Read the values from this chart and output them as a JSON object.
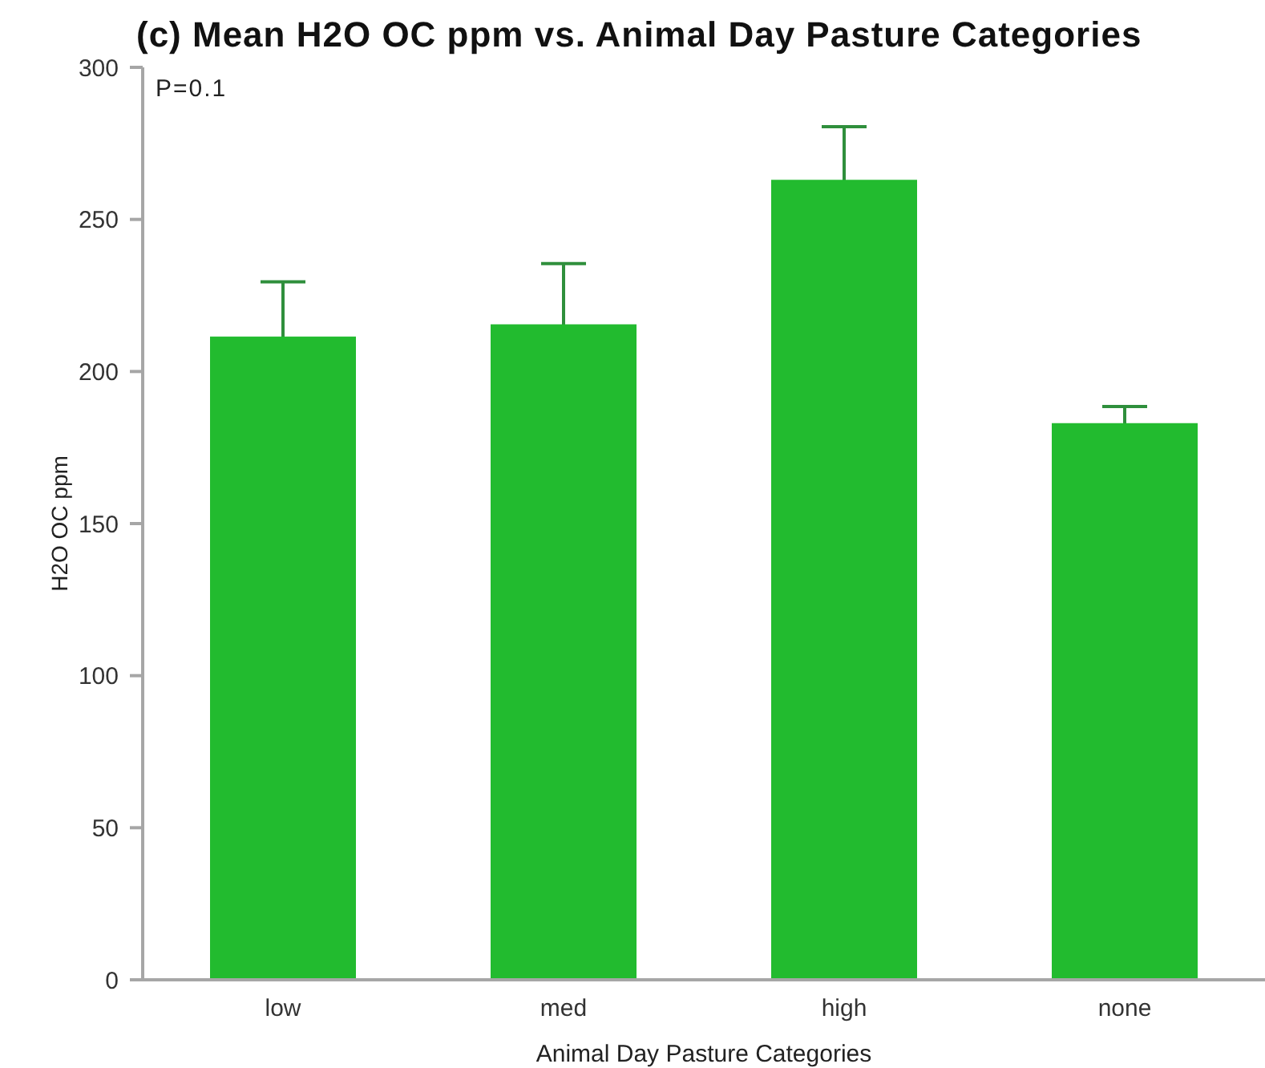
{
  "chart_data": {
    "type": "bar",
    "title": "(c) Mean H2O OC ppm vs. Animal Day Pasture Categories",
    "xlabel": "Animal Day Pasture Categories",
    "ylabel": "H2O OC ppm",
    "categories": [
      "low",
      "med",
      "high",
      "none"
    ],
    "values": [
      211.5,
      215.5,
      263,
      183
    ],
    "errors": [
      18,
      20,
      17.5,
      5.5
    ],
    "color": "#22bb2f",
    "ylim": [
      0,
      300
    ],
    "yticks": [
      0,
      50,
      100,
      150,
      200,
      250,
      300
    ],
    "annotations": [
      "P=0.1"
    ]
  }
}
